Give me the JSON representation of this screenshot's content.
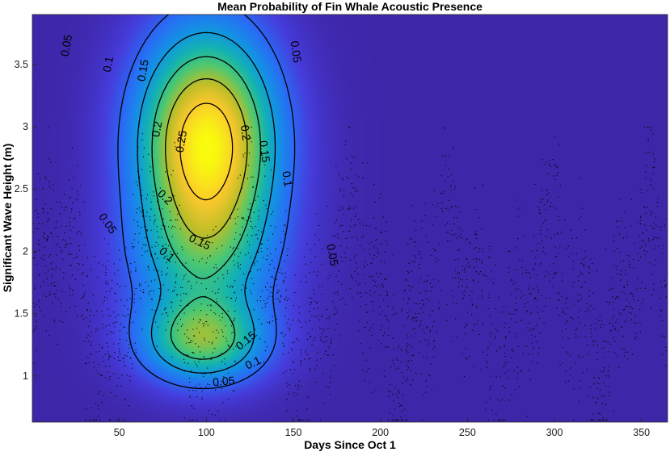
{
  "chart_data": {
    "type": "heatmap",
    "title": "Mean Probability of Fin Whale Acoustic Presence",
    "xlabel": "Days Since Oct 1",
    "ylabel": "Significant Wave Height (m)",
    "xlim": [
      0,
      365
    ],
    "ylim": [
      0.63,
      3.9
    ],
    "xticks": [
      50,
      100,
      150,
      200,
      250,
      300,
      350
    ],
    "yticks": [
      1,
      1.5,
      2,
      2.5,
      3,
      3.5
    ],
    "colormap": "parula",
    "background_color": "#3e26a8",
    "grid": false,
    "legend": "none",
    "probability_surface": {
      "peaks": [
        {
          "day": 100,
          "wave_height_m": 2.8,
          "probability": 0.29
        },
        {
          "day": 97,
          "wave_height_m": 1.3,
          "probability": 0.18
        }
      ],
      "maximum_probability": 0.29
    },
    "contour_levels": [
      0.05,
      0.1,
      0.15,
      0.2,
      0.25
    ],
    "contour_labels": [
      {
        "text": "0.05",
        "x": 20,
        "y": 3.65,
        "angle": -80
      },
      {
        "text": "0.1",
        "x": 44,
        "y": 3.5,
        "angle": -80
      },
      {
        "text": "0.15",
        "x": 64,
        "y": 3.45,
        "angle": -80
      },
      {
        "text": "0.05",
        "x": 151,
        "y": 3.6,
        "angle": 82
      },
      {
        "text": "0.2",
        "x": 72,
        "y": 2.98,
        "angle": -80
      },
      {
        "text": "0.25",
        "x": 86,
        "y": 2.88,
        "angle": -80
      },
      {
        "text": "0.2",
        "x": 122,
        "y": 2.95,
        "angle": 82
      },
      {
        "text": "0.15",
        "x": 133,
        "y": 2.8,
        "angle": 82
      },
      {
        "text": "0.1",
        "x": 146,
        "y": 2.58,
        "angle": 82
      },
      {
        "text": "0.2",
        "x": 76,
        "y": 2.43,
        "angle": 45
      },
      {
        "text": "0.05",
        "x": 43,
        "y": 2.22,
        "angle": 55
      },
      {
        "text": "0.15",
        "x": 96,
        "y": 2.07,
        "angle": 25
      },
      {
        "text": "0.1",
        "x": 77,
        "y": 1.97,
        "angle": 40
      },
      {
        "text": "0.05",
        "x": 172,
        "y": 1.97,
        "angle": 80
      },
      {
        "text": "0.15",
        "x": 123,
        "y": 1.28,
        "angle": -40
      },
      {
        "text": "0.1",
        "x": 127,
        "y": 1.1,
        "angle": -25
      },
      {
        "text": "0.05",
        "x": 110,
        "y": 0.95,
        "angle": -5
      }
    ],
    "observations": {
      "description": "scattered black dots of daily observations",
      "count_shown": 2600,
      "x_range": [
        0,
        365
      ],
      "y_range": [
        0.65,
        3.0
      ]
    }
  }
}
